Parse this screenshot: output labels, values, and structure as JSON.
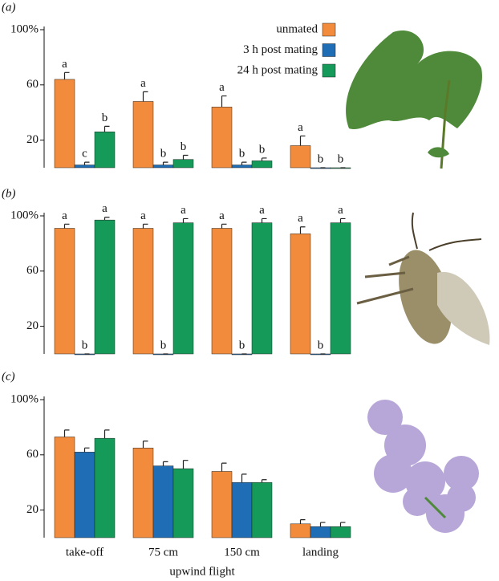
{
  "chart_data": [
    {
      "type": "bar",
      "label": "(a)",
      "ylim": [
        0,
        100
      ],
      "yticks": [
        20,
        60,
        {
          "value": 100,
          "label": "100%"
        }
      ],
      "series": [
        {
          "name": "unmated",
          "color": "#f28c3c",
          "values": [
            64,
            48,
            44,
            16
          ],
          "errors": [
            5,
            7,
            8,
            7
          ],
          "letters": [
            "a",
            "a",
            "a",
            "a"
          ]
        },
        {
          "name": "3 h post mating",
          "color": "#1f6db5",
          "values": [
            2,
            2,
            2,
            0
          ],
          "errors": [
            2,
            2,
            2,
            0
          ],
          "letters": [
            "c",
            "b",
            "b",
            "b"
          ]
        },
        {
          "name": "24 h post mating",
          "color": "#169a5a",
          "values": [
            26,
            6,
            5,
            0
          ],
          "errors": [
            4,
            3,
            2,
            0
          ],
          "letters": [
            "b",
            "b",
            "b",
            "b"
          ]
        }
      ]
    },
    {
      "type": "bar",
      "label": "(b)",
      "ylim": [
        0,
        100
      ],
      "yticks": [
        20,
        60,
        {
          "value": 100,
          "label": "100%"
        }
      ],
      "series": [
        {
          "color": "#f28c3c",
          "values": [
            91,
            91,
            91,
            87
          ],
          "errors": [
            3,
            3,
            3,
            5
          ],
          "letters": [
            "a",
            "a",
            "a",
            "a"
          ]
        },
        {
          "color": "#1f6db5",
          "values": [
            0,
            0,
            0,
            0
          ],
          "errors": [
            0,
            0,
            0,
            0
          ],
          "letters": [
            "b",
            "b",
            "b",
            "b"
          ]
        },
        {
          "color": "#169a5a",
          "values": [
            97,
            95,
            95,
            95
          ],
          "errors": [
            2,
            3,
            3,
            3
          ],
          "letters": [
            "a",
            "a",
            "a",
            "a"
          ]
        }
      ]
    },
    {
      "type": "bar",
      "label": "(c)",
      "ylim": [
        0,
        100
      ],
      "yticks": [
        20,
        60,
        {
          "value": 100,
          "label": "100%"
        }
      ],
      "categories": [
        "take-off",
        "75 cm",
        "150 cm",
        "landing"
      ],
      "xlabel": "upwind flight",
      "series": [
        {
          "color": "#f28c3c",
          "values": [
            73,
            65,
            48,
            10
          ],
          "errors": [
            5,
            5,
            6,
            3
          ]
        },
        {
          "color": "#1f6db5",
          "values": [
            62,
            52,
            40,
            8
          ],
          "errors": [
            3,
            3,
            6,
            3
          ]
        },
        {
          "color": "#169a5a",
          "values": [
            72,
            50,
            40,
            8
          ],
          "errors": [
            6,
            6,
            2,
            3
          ]
        }
      ]
    }
  ]
}
